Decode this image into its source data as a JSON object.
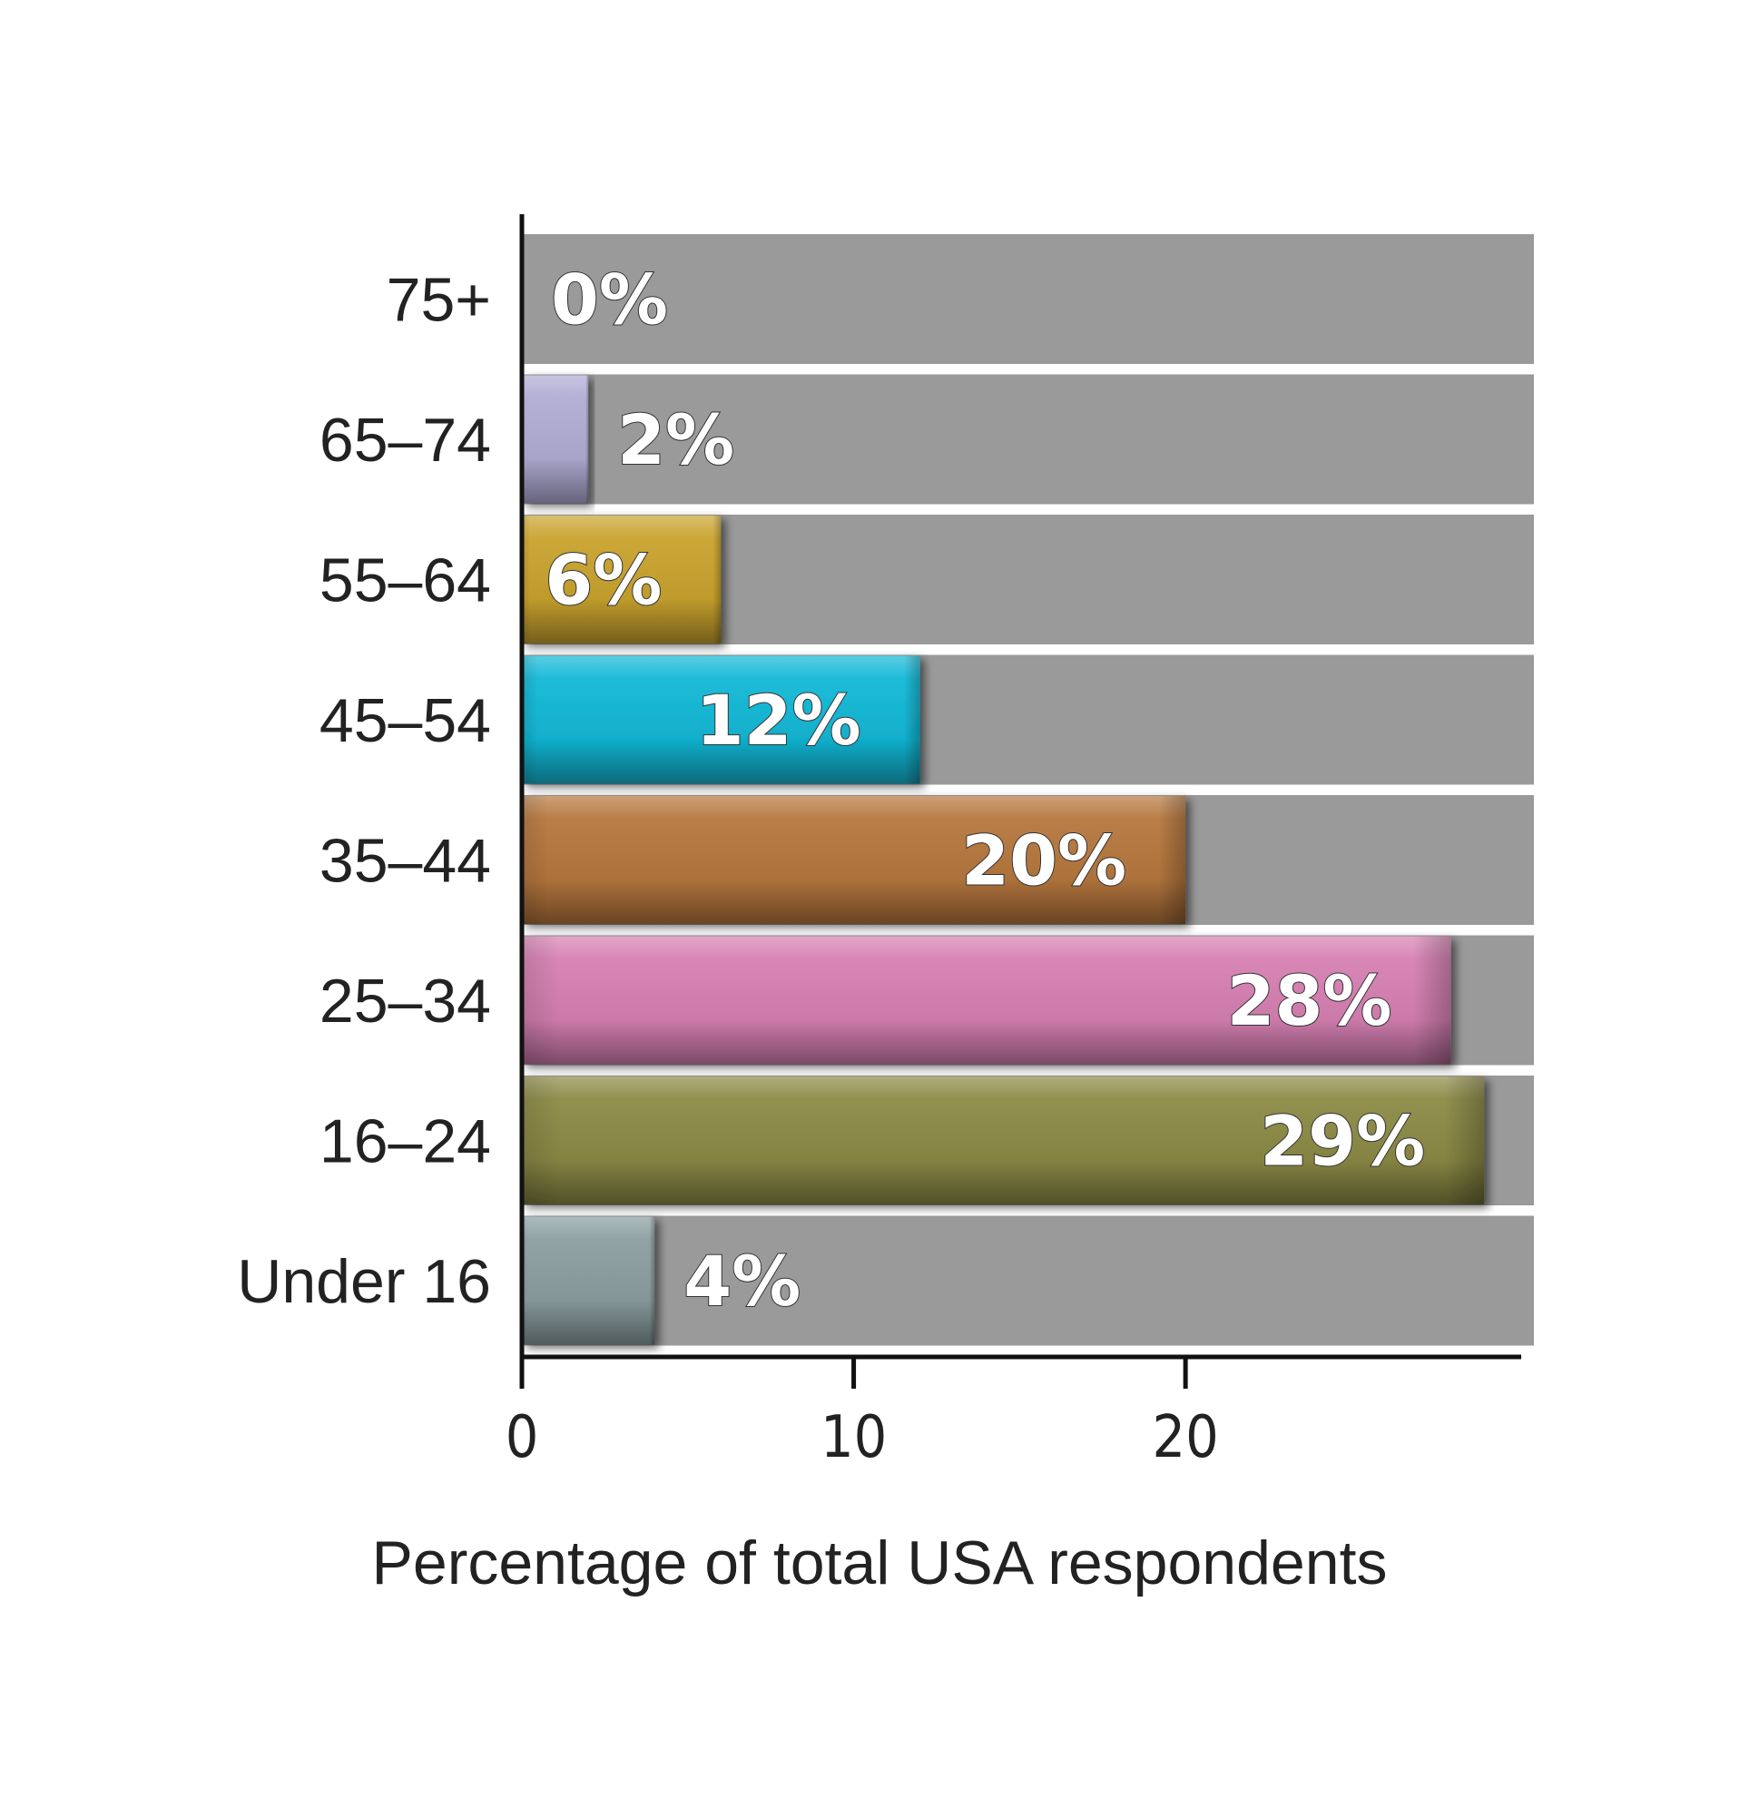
{
  "chart_data": {
    "type": "bar",
    "orientation": "horizontal",
    "title": "",
    "xlabel": "Percentage of total USA respondents",
    "ylabel": "",
    "xlim": [
      0,
      30.5
    ],
    "xticks": [
      "0",
      "10",
      "20"
    ],
    "grid": false,
    "categories": [
      "75+",
      "65–74",
      "55–64",
      "45–54",
      "35–44",
      "25–34",
      "16–24",
      "Under 16"
    ],
    "values": [
      0,
      2,
      6,
      12,
      20,
      28,
      29,
      4
    ],
    "value_labels": [
      "0%",
      "2%",
      "6%",
      "12%",
      "20%",
      "28%",
      "29%",
      "4%"
    ],
    "colors": [
      "#b0acd4",
      "#b0acd4",
      "#c9a32e",
      "#12b8d6",
      "#b6773e",
      "#d680b2",
      "#8c8a45",
      "#8b9ea0"
    ],
    "track_color": "#9a9a9a"
  }
}
